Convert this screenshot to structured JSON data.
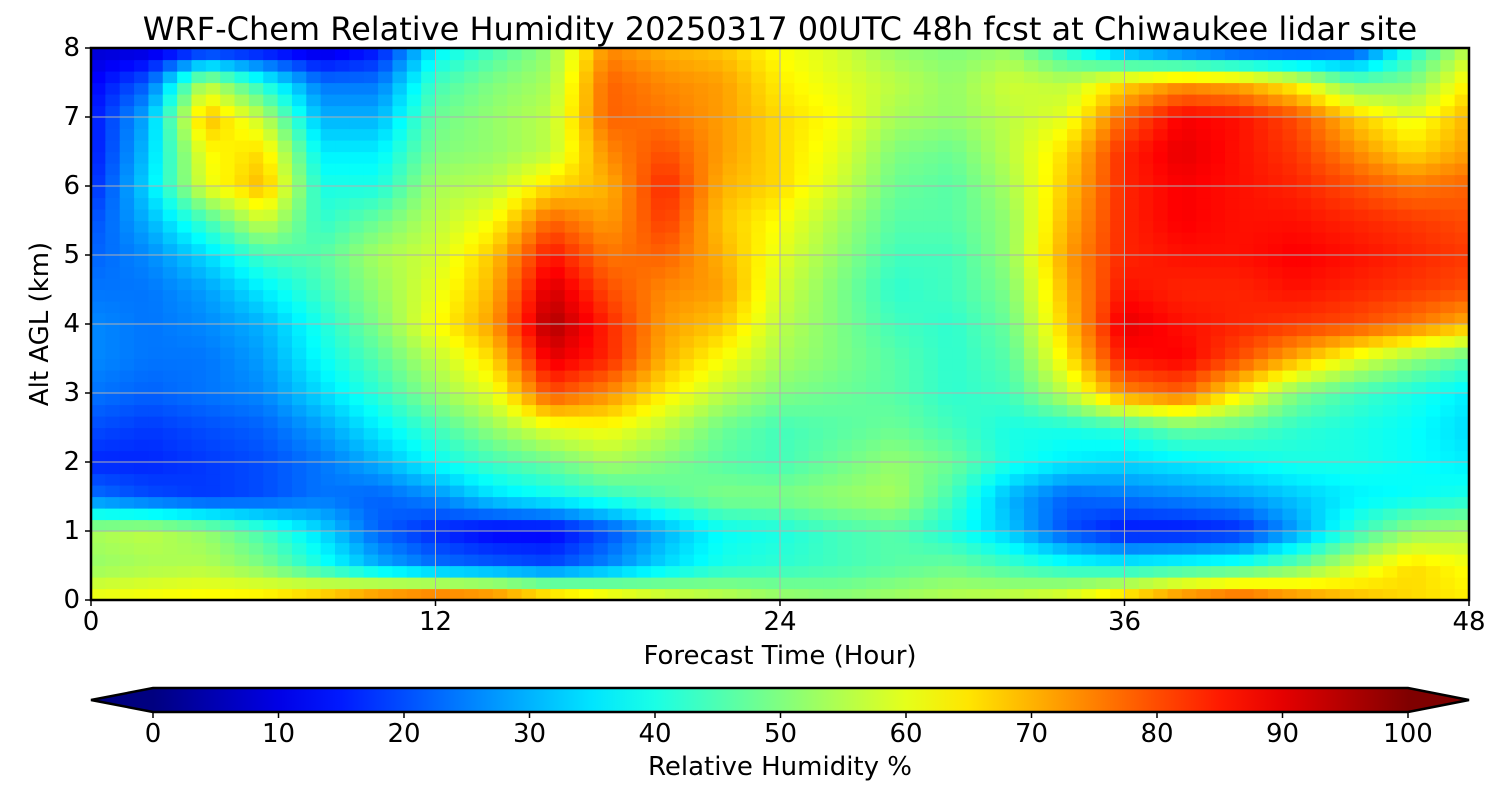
{
  "chart_data": {
    "type": "heatmap",
    "title": "WRF-Chem Relative Humidity 20250317 00UTC 48h fcst at Chiwaukee lidar site",
    "xlabel": "Forecast Time (Hour)",
    "ylabel": "Alt AGL (km)",
    "xlim": [
      0,
      48
    ],
    "ylim": [
      0,
      8
    ],
    "x_ticks": [
      0,
      12,
      24,
      36,
      48
    ],
    "x_tick_labels": [
      "0",
      "12",
      "24",
      "36",
      "48"
    ],
    "y_ticks": [
      0,
      1,
      2,
      3,
      4,
      5,
      6,
      7,
      8
    ],
    "y_tick_labels": [
      "0",
      "1",
      "2",
      "3",
      "4",
      "5",
      "6",
      "7",
      "8"
    ],
    "grid": true,
    "colorbar": {
      "label": "Relative Humidity %",
      "colormap": "jet",
      "range": [
        0,
        100
      ],
      "extend": "both",
      "ticks": [
        0,
        10,
        20,
        30,
        40,
        50,
        60,
        70,
        80,
        90,
        100
      ],
      "tick_labels": [
        "0",
        "10",
        "20",
        "30",
        "40",
        "50",
        "60",
        "70",
        "80",
        "90",
        "100"
      ]
    },
    "x": [
      0,
      2,
      4,
      6,
      8,
      10,
      12,
      14,
      16,
      18,
      20,
      22,
      24,
      26,
      28,
      30,
      32,
      34,
      36,
      38,
      40,
      42,
      44,
      46,
      48
    ],
    "y": [
      0,
      0.5,
      1,
      1.5,
      2,
      2.5,
      3,
      3.5,
      4,
      4.5,
      5,
      5.5,
      6,
      6.5,
      7,
      7.5,
      8
    ],
    "values": [
      [
        62,
        63,
        64,
        66,
        72,
        80,
        84,
        82,
        74,
        68,
        62,
        58,
        54,
        52,
        54,
        56,
        58,
        62,
        70,
        78,
        82,
        76,
        70,
        66,
        64
      ],
      [
        52,
        54,
        55,
        50,
        40,
        30,
        24,
        22,
        20,
        26,
        34,
        40,
        42,
        44,
        46,
        48,
        44,
        40,
        38,
        40,
        42,
        48,
        58,
        66,
        62
      ],
      [
        54,
        56,
        52,
        44,
        34,
        22,
        16,
        12,
        12,
        20,
        30,
        38,
        40,
        44,
        46,
        40,
        32,
        20,
        14,
        14,
        16,
        28,
        42,
        52,
        54
      ],
      [
        24,
        20,
        18,
        20,
        24,
        22,
        26,
        34,
        38,
        42,
        46,
        50,
        50,
        52,
        54,
        44,
        30,
        22,
        24,
        26,
        28,
        32,
        36,
        38,
        40
      ],
      [
        16,
        16,
        18,
        20,
        24,
        30,
        38,
        44,
        48,
        54,
        50,
        46,
        44,
        48,
        52,
        48,
        40,
        36,
        34,
        36,
        38,
        40,
        40,
        38,
        36
      ],
      [
        20,
        18,
        20,
        22,
        28,
        36,
        44,
        52,
        60,
        62,
        56,
        48,
        44,
        46,
        48,
        44,
        40,
        40,
        42,
        48,
        46,
        42,
        40,
        38,
        34
      ],
      [
        24,
        22,
        24,
        26,
        34,
        42,
        52,
        60,
        80,
        74,
        64,
        56,
        50,
        48,
        46,
        42,
        44,
        56,
        74,
        78,
        64,
        50,
        44,
        40,
        36
      ],
      [
        26,
        24,
        24,
        28,
        38,
        46,
        56,
        66,
        90,
        84,
        70,
        62,
        54,
        50,
        46,
        42,
        46,
        64,
        86,
        88,
        80,
        70,
        60,
        52,
        46
      ],
      [
        26,
        24,
        26,
        30,
        40,
        50,
        62,
        72,
        96,
        84,
        72,
        68,
        56,
        50,
        44,
        42,
        48,
        68,
        90,
        86,
        84,
        82,
        80,
        76,
        70
      ],
      [
        24,
        24,
        28,
        36,
        44,
        52,
        60,
        70,
        92,
        80,
        74,
        72,
        58,
        50,
        42,
        44,
        50,
        70,
        86,
        84,
        84,
        86,
        84,
        82,
        80
      ],
      [
        22,
        26,
        34,
        44,
        46,
        54,
        58,
        68,
        86,
        76,
        78,
        70,
        60,
        52,
        44,
        44,
        52,
        72,
        84,
        86,
        86,
        88,
        86,
        84,
        82
      ],
      [
        20,
        30,
        44,
        58,
        42,
        48,
        56,
        62,
        78,
        72,
        82,
        68,
        62,
        54,
        46,
        46,
        52,
        70,
        84,
        88,
        86,
        86,
        84,
        82,
        80
      ],
      [
        16,
        34,
        60,
        70,
        40,
        40,
        54,
        56,
        66,
        70,
        84,
        70,
        66,
        58,
        48,
        46,
        54,
        68,
        84,
        88,
        86,
        84,
        80,
        76,
        78
      ],
      [
        14,
        32,
        62,
        66,
        36,
        36,
        50,
        52,
        56,
        74,
        80,
        72,
        66,
        60,
        50,
        48,
        56,
        66,
        84,
        90,
        86,
        82,
        74,
        66,
        72
      ],
      [
        14,
        30,
        70,
        56,
        30,
        30,
        48,
        52,
        56,
        78,
        76,
        72,
        66,
        62,
        54,
        52,
        56,
        60,
        78,
        88,
        86,
        80,
        68,
        60,
        70
      ],
      [
        12,
        22,
        56,
        40,
        24,
        24,
        44,
        50,
        54,
        78,
        74,
        72,
        64,
        60,
        56,
        52,
        58,
        56,
        66,
        72,
        70,
        62,
        48,
        50,
        64
      ],
      [
        8,
        8,
        14,
        12,
        8,
        14,
        36,
        44,
        52,
        74,
        70,
        68,
        62,
        58,
        52,
        50,
        52,
        40,
        26,
        18,
        14,
        14,
        18,
        40,
        56
      ]
    ]
  }
}
